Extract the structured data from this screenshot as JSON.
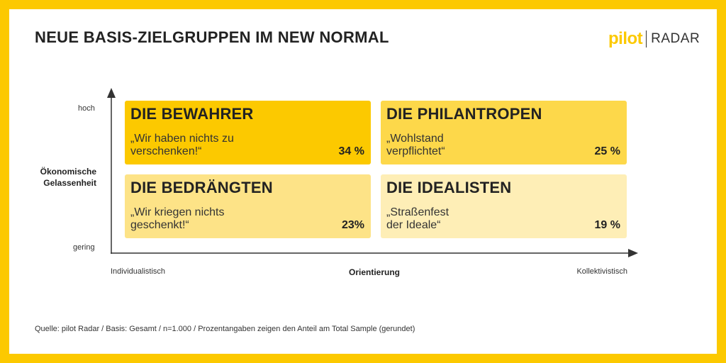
{
  "title": "NEUE BASIS-ZIELGRUPPEN IM NEW NORMAL",
  "logo": {
    "left": "pilot",
    "right": "RADAR"
  },
  "y_axis": {
    "high": "hoch",
    "low": "gering",
    "title_line1": "Ökonomische",
    "title_line2": "Gelassenheit"
  },
  "x_axis": {
    "left": "Individualistisch",
    "right": "Kollektivistisch",
    "title": "Orientierung"
  },
  "segments": [
    {
      "name": "DIE BEWAHRER",
      "quote_line1": "„Wir haben nichts zu",
      "quote_line2": "verschenken!“",
      "share": "34 %",
      "color": "#fcc900"
    },
    {
      "name": "DIE PHILANTROPEN",
      "quote_line1": "„Wohlstand",
      "quote_line2": " verpflichtet“",
      "share": "25 %",
      "color": "#fdd84a"
    },
    {
      "name": "DIE BEDRÄNGTEN",
      "quote_line1": "„Wir kriegen nichts",
      "quote_line2": "geschenkt!“",
      "share": "23%",
      "color": "#fde387"
    },
    {
      "name": "DIE IDEALISTEN",
      "quote_line1": "„Straßenfest",
      "quote_line2": "der Ideale“",
      "share": "19 %",
      "color": "#feeeb6"
    }
  ],
  "source": "Quelle: pilot Radar / Basis: Gesamt  / n=1.000 / Prozentangaben zeigen den Anteil am Total Sample (gerundet)"
}
